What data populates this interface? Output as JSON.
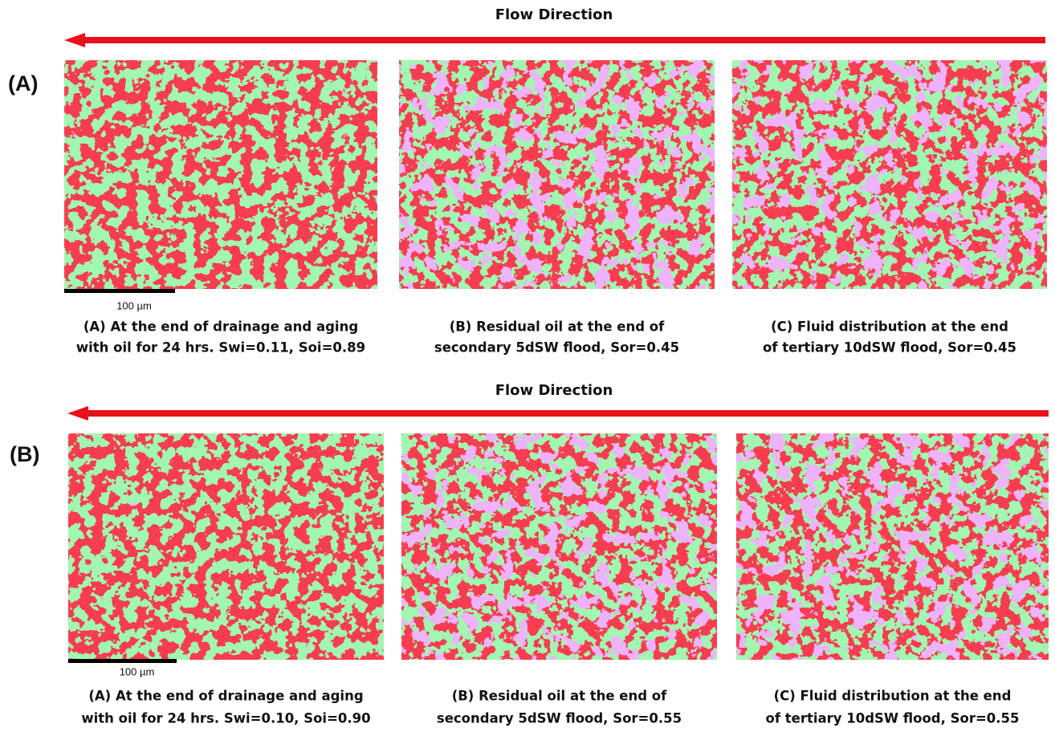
{
  "rows": [
    {
      "label": "(A)",
      "flow": "Flow Direction",
      "scale": "100 µm",
      "captions": [
        [
          "(A) At the end of drainage and aging",
          "with oil for 24 hrs. Swi=0.11, Soi=0.89"
        ],
        [
          "(B) Residual oil at the end of",
          "secondary 5dSW flood, Sor=0.45"
        ],
        [
          "(C) Fluid distribution at the end",
          "of tertiary 10dSW flood, Sor=0.45"
        ]
      ]
    },
    {
      "label": "(B)",
      "flow": "Flow Direction",
      "scale": "100 µm",
      "captions": [
        [
          "(A) At the end of drainage and aging",
          "with oil for 24 hrs. Swi=0.10, Soi=0.90"
        ],
        [
          "(B) Residual oil at the end of",
          "secondary 5dSW flood, Sor=0.55"
        ],
        [
          "(C) Fluid distribution at the end",
          "of tertiary 10dSW flood, Sor=0.55"
        ]
      ]
    }
  ]
}
